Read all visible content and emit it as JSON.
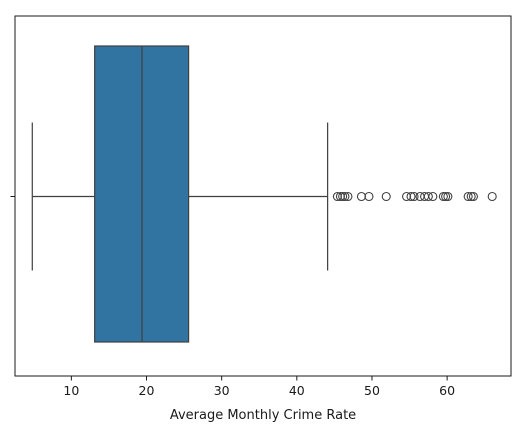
{
  "chart_data": {
    "type": "box",
    "orientation": "horizontal",
    "title": "",
    "xlabel": "Average Monthly Crime Rate",
    "ylabel": "",
    "xlim": [
      2.5,
      68.5
    ],
    "x_ticks": [
      10,
      20,
      30,
      40,
      50,
      60
    ],
    "y_ticks": [
      ""
    ],
    "grid": false,
    "box": {
      "whisker_low": 4.8,
      "q1": 13.1,
      "median": 19.4,
      "q3": 25.6,
      "whisker_high": 44.1,
      "outliers": [
        45.4,
        45.8,
        46.1,
        46.4,
        46.8,
        48.6,
        49.6,
        51.9,
        54.6,
        55.2,
        55.6,
        56.4,
        57.0,
        57.5,
        58.1,
        59.5,
        59.8,
        60.1,
        62.8,
        63.2,
        63.5,
        66.0
      ],
      "color": "#3274a1",
      "line_color": "#3f3f3f"
    }
  }
}
